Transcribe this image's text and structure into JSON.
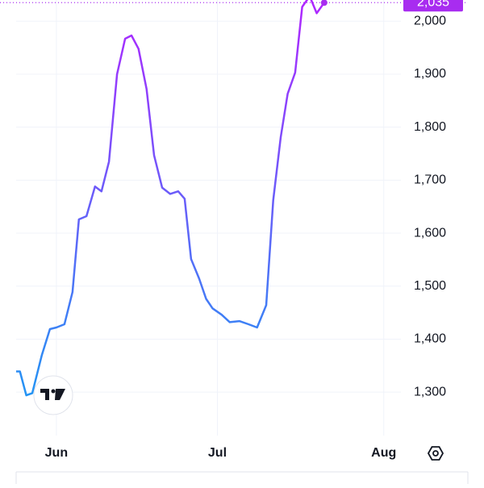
{
  "chart_data": {
    "type": "line",
    "x": [
      144.5,
      145.2,
      146.4,
      147.5,
      149.3,
      150.8,
      152,
      153.5,
      155,
      156.2,
      157.6,
      159.2,
      160.4,
      161.8,
      163.3,
      164.8,
      166,
      167.3,
      168.8,
      170.2,
      171.7,
      173.2,
      174.7,
      175.9,
      177.1,
      178.6,
      179.9,
      181.1,
      182.8,
      184.3,
      186.1,
      187.8,
      189.4,
      191.1,
      192.4,
      193.8,
      195.1,
      196.5,
      197.8,
      199.2,
      200.5,
      201.9
    ],
    "values": [
      1339,
      1339,
      1294,
      1298,
      1370,
      1419,
      1422,
      1428,
      1489,
      1626,
      1632,
      1688,
      1679,
      1735,
      1900,
      1967,
      1973,
      1948,
      1872,
      1747,
      1686,
      1674,
      1679,
      1665,
      1551,
      1514,
      1476,
      1458,
      1446,
      1432,
      1434,
      1428,
      1422,
      1464,
      1662,
      1781,
      1863,
      1903,
      2027,
      2047,
      2015,
      2035
    ],
    "value_labels": [
      null,
      null,
      null,
      null,
      null,
      null,
      null,
      null,
      null,
      null,
      null,
      null,
      null,
      null,
      null,
      null,
      null,
      null,
      null,
      null,
      null,
      null,
      null,
      null,
      null,
      null,
      null,
      null,
      null,
      null,
      null,
      null,
      null,
      null,
      null,
      null,
      null,
      null,
      null,
      null,
      null,
      "2,035"
    ],
    "gradient": [
      "#2196f3",
      "#b026ff"
    ],
    "label_color": "#a82cf0",
    "xlim": [
      144.5,
      216.2
    ],
    "xticks": [
      {
        "value": 152,
        "label": "Jun"
      },
      {
        "value": 182,
        "label": "Jul"
      },
      {
        "value": 213,
        "label": "Aug"
      }
    ],
    "ylim": [
      1218,
      2040
    ],
    "yticks": [
      {
        "value": 1300,
        "label": "1,300"
      },
      {
        "value": 1400,
        "label": "1,400"
      },
      {
        "value": 1500,
        "label": "1,500"
      },
      {
        "value": 1600,
        "label": "1,600"
      },
      {
        "value": 1700,
        "label": "1,700"
      },
      {
        "value": 1800,
        "label": "1,800"
      },
      {
        "value": 1900,
        "label": "1,900"
      },
      {
        "value": 2000,
        "label": "2,000"
      }
    ],
    "grid": true
  }
}
